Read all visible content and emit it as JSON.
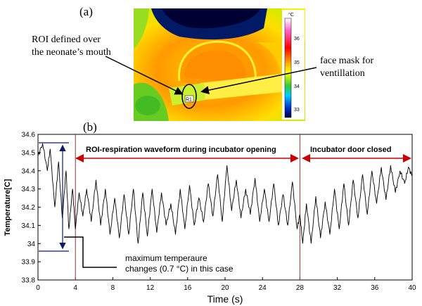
{
  "panel_a": {
    "label": "(a)",
    "callout_roi": [
      "ROI defined over",
      "the neonate’s mouth"
    ],
    "callout_mask": [
      "face mask for",
      "ventillation"
    ],
    "roi_tag": "R1",
    "colorbar": {
      "unit": "°C",
      "ticks": [
        "36",
        "35",
        "34",
        "33"
      ],
      "colors": [
        "#ffffff",
        "#ff66cc",
        "#ff0000",
        "#ffaa00",
        "#ffff00",
        "#33cc33",
        "#00ccff",
        "#0033cc",
        "#000044"
      ]
    }
  },
  "panel_b": {
    "label": "(b)",
    "annotation_opening": "ROI-respiration waveform during incubator opening",
    "annotation_closed": "Incubator door closed",
    "callout_change": [
      "maximum temperaure",
      "changes (0.7 °C) in this case"
    ],
    "colors": {
      "trace": "#000000",
      "arrow_red": "#cc0000",
      "arrow_blue": "#0a1a6e",
      "marker_line": "#8b3a3a"
    }
  },
  "chart_data": {
    "type": "line",
    "xlabel": "Time (s)",
    "ylabel": "Temperature[C]",
    "xlim": [
      0,
      40
    ],
    "ylim": [
      33.8,
      34.6
    ],
    "xticks": [
      "0",
      "4",
      "8",
      "12",
      "16",
      "20",
      "24",
      "28",
      "32",
      "36",
      "40"
    ],
    "yticks": [
      "34.6",
      "34.5",
      "34.4",
      "34.3",
      "34.2",
      "34.1",
      "34",
      "33.9",
      "33.8"
    ],
    "vertical_markers": [
      4,
      28
    ],
    "grid": false,
    "series": [
      {
        "x": [
          0,
          0.5,
          1.0,
          1.3,
          1.8,
          2.2,
          2.6,
          3.0,
          3.3,
          3.7,
          4.0,
          4.4,
          4.8,
          5.2,
          5.7,
          6.2,
          6.7,
          7.2,
          7.7,
          8.2,
          8.7,
          9.2,
          9.7,
          10.2,
          10.7,
          11.2,
          11.7,
          12.2,
          12.7,
          13.2,
          13.7,
          14.2,
          14.7,
          15.2,
          15.7,
          16.2,
          16.7,
          17.2,
          17.7,
          18.2,
          18.7,
          19.2,
          19.7,
          20.2,
          20.7,
          21.2,
          21.7,
          22.2,
          22.7,
          23.2,
          23.7,
          24.2,
          24.7,
          25.2,
          25.7,
          26.2,
          26.7,
          27.2,
          27.7,
          28.0,
          28.3,
          28.7,
          29.2,
          29.7,
          30.2,
          30.7,
          31.2,
          31.7,
          32.2,
          32.7,
          33.2,
          33.7,
          34.2,
          34.7,
          35.2,
          35.7,
          36.2,
          36.7,
          37.2,
          37.7,
          38.2,
          38.7,
          39.2,
          39.6,
          40.0
        ],
        "y": [
          34.48,
          34.55,
          34.4,
          34.52,
          34.2,
          34.45,
          34.14,
          34.4,
          34.08,
          34.3,
          34.08,
          34.28,
          34.15,
          34.3,
          34.12,
          34.35,
          34.1,
          34.3,
          34.05,
          34.25,
          34.03,
          34.27,
          34.05,
          34.3,
          34.0,
          34.28,
          34.04,
          34.3,
          34.06,
          34.28,
          34.1,
          34.22,
          34.05,
          34.3,
          34.08,
          34.32,
          34.1,
          34.25,
          34.12,
          34.33,
          34.15,
          34.38,
          34.12,
          34.43,
          34.18,
          34.35,
          34.14,
          34.3,
          34.16,
          34.36,
          34.12,
          34.3,
          34.12,
          34.33,
          34.1,
          34.27,
          34.1,
          34.34,
          34.08,
          34.16,
          34.0,
          34.22,
          34.0,
          34.26,
          34.03,
          34.23,
          34.05,
          34.3,
          34.08,
          34.33,
          34.1,
          34.35,
          34.14,
          34.38,
          34.16,
          34.4,
          34.22,
          34.42,
          34.24,
          34.43,
          34.28,
          34.4,
          34.33,
          34.42,
          34.37
        ]
      }
    ]
  }
}
